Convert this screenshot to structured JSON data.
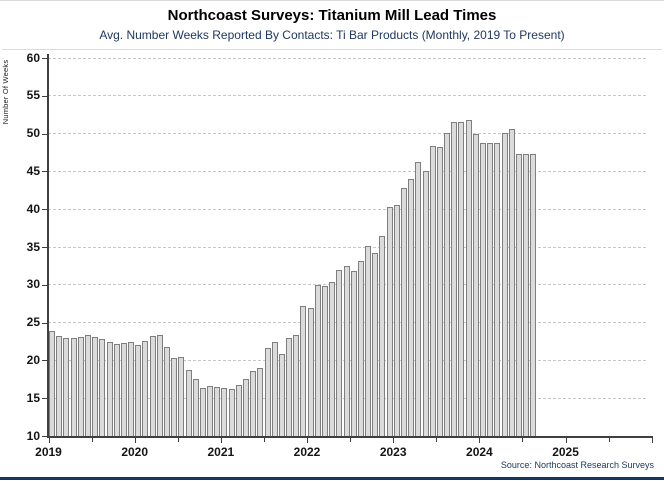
{
  "chart_data": {
    "type": "bar",
    "title": "Northcoast Surveys: Titanium Mill Lead Times",
    "subtitle": "Avg. Number Weeks Reported By Contacts: Ti Bar Products (Monthly, 2019 To Present)",
    "ylabel": "Number Of Weeks",
    "source": "Source: Northcoast Research Surveys",
    "ylim": [
      10,
      60
    ],
    "ytick_step": 5,
    "y_tick_labels": [
      10,
      15,
      20,
      25,
      30,
      35,
      40,
      45,
      50,
      55,
      60
    ],
    "x_tick_labels": [
      "2019",
      "2020",
      "2021",
      "2022",
      "2023",
      "2024",
      "2025"
    ],
    "grid": "horizontal-dashed",
    "legend": "none",
    "series_name": "Avg. Number Of Weeks",
    "x_start": "2019-01",
    "frequency": "monthly",
    "monthly_values": [
      {
        "year": 2019,
        "values": [
          23.9,
          23.2,
          22.9,
          23.0,
          23.1,
          23.3,
          23.1,
          22.8,
          22.5,
          22.2,
          22.3,
          22.5
        ]
      },
      {
        "year": 2020,
        "values": [
          22.1,
          22.6,
          23.2,
          23.4,
          21.8,
          20.3,
          20.5,
          18.7,
          17.6,
          16.3,
          16.6,
          16.5
        ]
      },
      {
        "year": 2021,
        "values": [
          16.4,
          16.2,
          16.7,
          17.5,
          18.6,
          19.0,
          21.6,
          22.4,
          20.8,
          23.0,
          23.4,
          27.2
        ]
      },
      {
        "year": 2022,
        "values": [
          26.9,
          30.0,
          29.9,
          30.4,
          32.0,
          32.5,
          31.8,
          33.1,
          35.1,
          34.2,
          36.5,
          40.3
        ]
      },
      {
        "year": 2023,
        "values": [
          40.6,
          42.8,
          44.0,
          46.2,
          45.0,
          48.4,
          48.2,
          50.1,
          51.6,
          51.6,
          51.8,
          49.9
        ]
      },
      {
        "year": 2024,
        "values": [
          48.7,
          48.7,
          48.8,
          50.1,
          50.6,
          47.3,
          47.3,
          47.3
        ]
      }
    ],
    "colors": {
      "bar_fill": "#DBDBDB",
      "bar_border": "#7F7F7F",
      "gridline": "#C8C8C8",
      "axis": "#3F3F3F",
      "subtitle_text": "#1F3864",
      "bottom_accent": "#17365D"
    }
  }
}
